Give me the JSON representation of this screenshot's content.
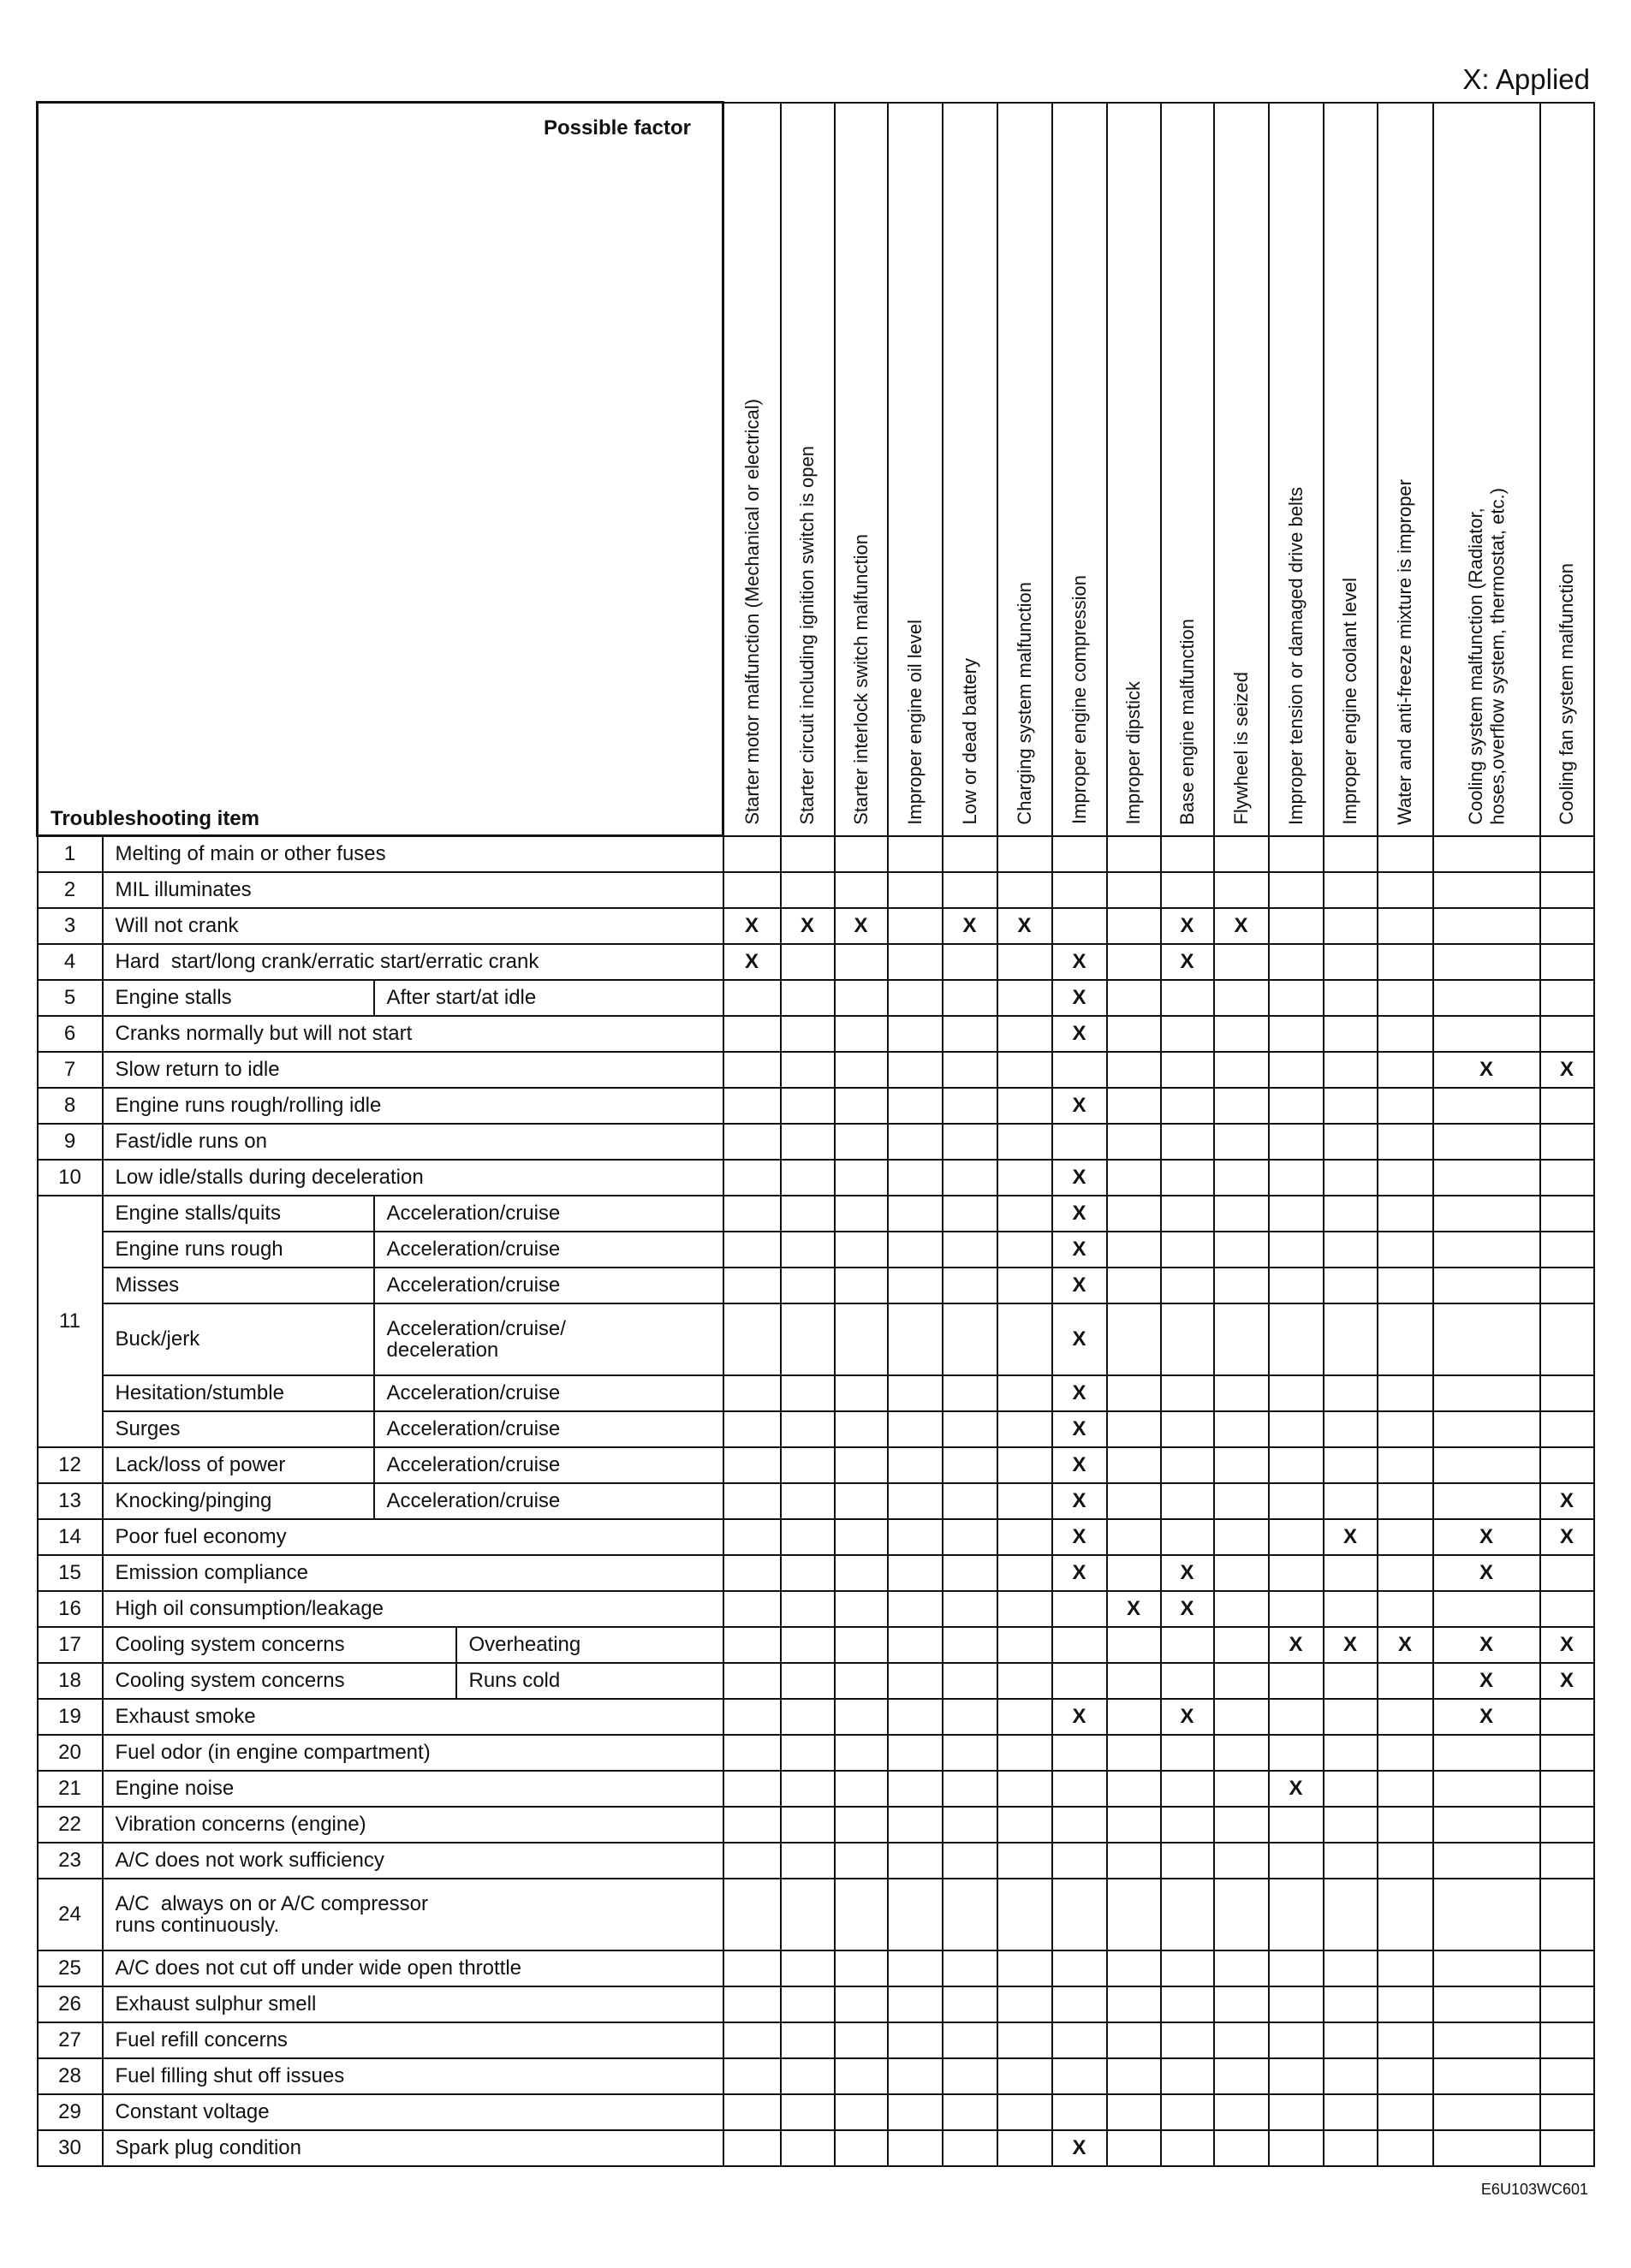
{
  "legend": "X: Applied",
  "figure_code": "E6U103WC601",
  "header": {
    "possible_factor": "Possible factor",
    "troubleshooting_item": "Troubleshooting item"
  },
  "mark": "X",
  "factors": [
    "Starter motor malfunction (Mechanical or electrical)",
    "Starter circuit including ignition switch is open",
    "Starter interlock switch malfunction",
    "Improper engine oil level",
    "Low or dead battery",
    "Charging system malfunction",
    "Improper engine compression",
    "Improper dipstick",
    "Base engine malfunction",
    "Flywheel is seized",
    "Improper tension or damaged drive belts",
    "Improper engine coolant level",
    "Water and anti-freeze mixture is improper",
    "Cooling system malfunction (Radiator,\nhoses,overflow system, thermostat, etc.)",
    "Cooling fan system malfunction"
  ],
  "rows": [
    {
      "num": "1",
      "sub": [
        {
          "item": "Melting of main or other fuses",
          "marks": []
        }
      ]
    },
    {
      "num": "2",
      "sub": [
        {
          "item": "MIL illuminates",
          "marks": []
        }
      ]
    },
    {
      "num": "3",
      "sub": [
        {
          "item": "Will not crank",
          "marks": [
            0,
            1,
            2,
            4,
            5,
            8,
            9
          ]
        }
      ]
    },
    {
      "num": "4",
      "sub": [
        {
          "item": "Hard  start/long crank/erratic start/erratic crank",
          "marks": [
            0,
            6,
            8
          ]
        }
      ]
    },
    {
      "num": "5",
      "sub": [
        {
          "item": "Engine stalls",
          "cond": "After start/at idle",
          "marks": [
            6
          ]
        }
      ]
    },
    {
      "num": "6",
      "sub": [
        {
          "item": "Cranks normally but will not start",
          "marks": [
            6
          ]
        }
      ]
    },
    {
      "num": "7",
      "sub": [
        {
          "item": "Slow return to idle",
          "marks": [
            13,
            14
          ]
        }
      ]
    },
    {
      "num": "8",
      "sub": [
        {
          "item": "Engine runs rough/rolling idle",
          "marks": [
            6
          ]
        }
      ]
    },
    {
      "num": "9",
      "sub": [
        {
          "item": "Fast/idle runs on",
          "marks": []
        }
      ]
    },
    {
      "num": "10",
      "sub": [
        {
          "item": "Low idle/stalls during deceleration",
          "marks": [
            6
          ]
        }
      ]
    },
    {
      "num": "11",
      "sub": [
        {
          "item": "Engine stalls/quits",
          "cond": "Acceleration/cruise",
          "marks": [
            6
          ]
        },
        {
          "item": "Engine runs rough",
          "cond": "Acceleration/cruise",
          "marks": [
            6
          ]
        },
        {
          "item": "Misses",
          "cond": "Acceleration/cruise",
          "marks": [
            6
          ]
        },
        {
          "item": "Buck/jerk",
          "cond": "Acceleration/cruise/\ndeceleration",
          "marks": [
            6
          ]
        },
        {
          "item": "Hesitation/stumble",
          "cond": "Acceleration/cruise",
          "marks": [
            6
          ]
        },
        {
          "item": "Surges",
          "cond": "Acceleration/cruise",
          "marks": [
            6
          ]
        }
      ]
    },
    {
      "num": "12",
      "sub": [
        {
          "item": "Lack/loss of power",
          "cond": "Acceleration/cruise",
          "marks": [
            6
          ]
        }
      ]
    },
    {
      "num": "13",
      "sub": [
        {
          "item": "Knocking/pinging",
          "cond": "Acceleration/cruise",
          "marks": [
            6,
            14
          ]
        }
      ]
    },
    {
      "num": "14",
      "sub": [
        {
          "item": "Poor fuel economy",
          "marks": [
            6,
            11,
            13,
            14
          ]
        }
      ]
    },
    {
      "num": "15",
      "sub": [
        {
          "item": "Emission compliance",
          "marks": [
            6,
            8,
            13
          ]
        }
      ]
    },
    {
      "num": "16",
      "sub": [
        {
          "item": "High oil consumption/leakage",
          "marks": [
            7,
            8
          ]
        }
      ]
    },
    {
      "num": "17",
      "sub": [
        {
          "item": "Cooling system concerns",
          "cond": "Overheating",
          "marks": [
            10,
            11,
            12,
            13,
            14
          ]
        }
      ]
    },
    {
      "num": "18",
      "sub": [
        {
          "item": "Cooling system concerns",
          "cond": "Runs cold",
          "marks": [
            13,
            14
          ]
        }
      ]
    },
    {
      "num": "19",
      "sub": [
        {
          "item": "Exhaust smoke",
          "marks": [
            6,
            8,
            13
          ]
        }
      ]
    },
    {
      "num": "20",
      "sub": [
        {
          "item": "Fuel odor (in engine compartment)",
          "marks": []
        }
      ]
    },
    {
      "num": "21",
      "sub": [
        {
          "item": "Engine noise",
          "marks": [
            10
          ]
        }
      ]
    },
    {
      "num": "22",
      "sub": [
        {
          "item": "Vibration concerns (engine)",
          "marks": []
        }
      ]
    },
    {
      "num": "23",
      "sub": [
        {
          "item": "A/C does not work sufficiency",
          "marks": []
        }
      ]
    },
    {
      "num": "24",
      "sub": [
        {
          "item": "A/C  always on or A/C compressor\nruns continuously.",
          "marks": []
        }
      ]
    },
    {
      "num": "25",
      "sub": [
        {
          "item": "A/C does not cut off under wide open throttle",
          "marks": []
        }
      ]
    },
    {
      "num": "26",
      "sub": [
        {
          "item": "Exhaust sulphur smell",
          "marks": []
        }
      ]
    },
    {
      "num": "27",
      "sub": [
        {
          "item": "Fuel refill concerns",
          "marks": []
        }
      ]
    },
    {
      "num": "28",
      "sub": [
        {
          "item": "Fuel filling shut off issues",
          "marks": []
        }
      ]
    },
    {
      "num": "29",
      "sub": [
        {
          "item": "Constant voltage",
          "marks": []
        }
      ]
    },
    {
      "num": "30",
      "sub": [
        {
          "item": "Spark plug condition",
          "marks": [
            6
          ]
        }
      ]
    }
  ]
}
